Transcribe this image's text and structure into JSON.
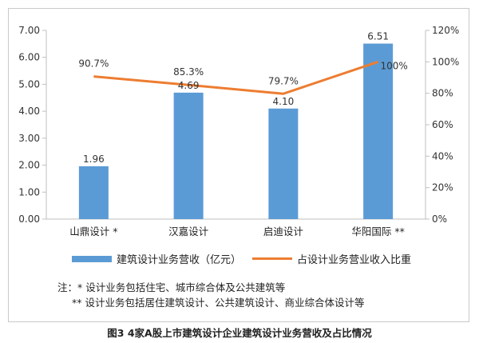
{
  "chart_data": {
    "type": "bar",
    "categories": [
      "山鼎设计 *",
      "汉嘉设计",
      "启迪设计",
      "华阳国际 **"
    ],
    "series": [
      {
        "name": "建筑设计业务营收（亿元）",
        "type": "bar",
        "axis": "left",
        "values": [
          1.96,
          4.69,
          4.1,
          6.51
        ],
        "labels": [
          "1.96",
          "4.69",
          "4.10",
          "6.51"
        ]
      },
      {
        "name": "占设计业务营业收入比重",
        "type": "line",
        "axis": "right",
        "values": [
          90.7,
          85.3,
          79.7,
          100
        ],
        "labels": [
          "90.7%",
          "85.3%",
          "79.7%",
          "100%"
        ]
      }
    ],
    "left_axis": {
      "ylim": [
        0,
        7
      ],
      "ticks": [
        "0.00",
        "1.00",
        "2.00",
        "3.00",
        "4.00",
        "5.00",
        "6.00",
        "7.00"
      ]
    },
    "right_axis": {
      "ylim": [
        0,
        120
      ],
      "ticks": [
        "0%",
        "20%",
        "40%",
        "60%",
        "80%",
        "100%",
        "120%"
      ]
    },
    "grid": false,
    "legend_position": "bottom",
    "colors": {
      "bar": "#5b9bd5",
      "line": "#ed7d31"
    }
  },
  "legend": {
    "bar_label": "建筑设计业务营收（亿元）",
    "line_label": "占设计业务营业收入比重"
  },
  "notes": [
    "注：* 设计业务包括住宅、城市综合体及公共建筑等",
    "** 设计业务包括居住建筑设计、公共建筑设计、商业综合体设计等"
  ],
  "caption": "图3 4家A股上市建筑设计企业建筑设计业务营收及占比情况"
}
